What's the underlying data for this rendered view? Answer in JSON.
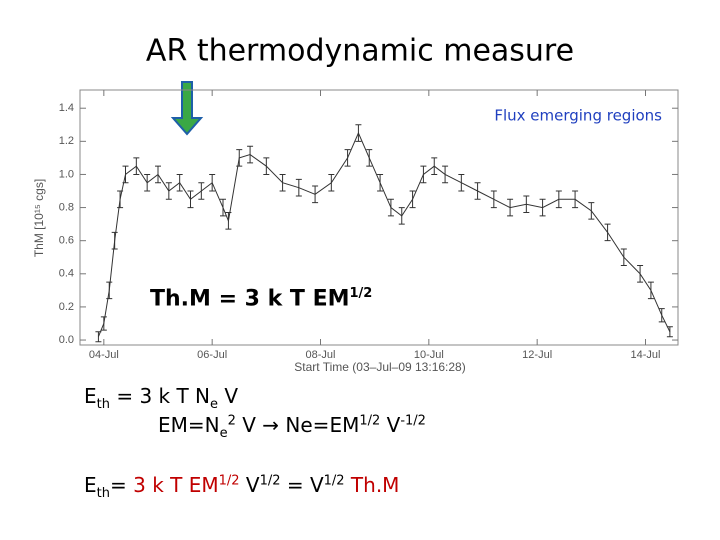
{
  "slide": {
    "title": "AR thermodynamic measure",
    "equations": [
      [
        {
          "t": "Th.M = 3 k T EM"
        },
        {
          "t": "1/2",
          "pos": "sup"
        }
      ],
      [
        {
          "t": "E"
        },
        {
          "t": "th",
          "pos": "sub"
        },
        {
          "t": " = 3 k T N"
        },
        {
          "t": "e",
          "pos": "sub"
        },
        {
          "t": " V"
        }
      ],
      [
        {
          "t": "EM=N"
        },
        {
          "t": "e",
          "pos": "sub"
        },
        {
          "t": "2",
          "pos": "sup"
        },
        {
          "t": " V → Ne=EM"
        },
        {
          "t": "1/2",
          "pos": "sup"
        },
        {
          "t": " V"
        },
        {
          "t": "-1/2",
          "pos": "sup"
        }
      ],
      [
        {
          "t": "E"
        },
        {
          "t": "th",
          "pos": "sub"
        },
        {
          "t": "= "
        },
        {
          "t": "3 k T EM",
          "color": "#c00000"
        },
        {
          "t": "1/2",
          "pos": "sup",
          "color": "#c00000"
        },
        {
          "t": " V"
        },
        {
          "t": "1/2",
          "pos": "sup"
        },
        {
          "t": " = V"
        },
        {
          "t": "1/2",
          "pos": "sup"
        },
        {
          "t": " Th.M",
          "color": "#c00000"
        }
      ]
    ]
  },
  "chart_data": {
    "type": "line",
    "annotation": "Flux emerging regions",
    "xlabel": "Start Time (03–Jul–09 13:16:28)",
    "ylabel": "ThM [10¹⁵ cgs]",
    "x": [
      -0.1,
      0.0,
      0.1,
      0.2,
      0.3,
      0.4,
      0.6,
      0.8,
      1.0,
      1.2,
      1.4,
      1.6,
      1.8,
      2.0,
      2.2,
      2.3,
      2.5,
      2.7,
      3.0,
      3.3,
      3.6,
      3.9,
      4.2,
      4.5,
      4.7,
      4.9,
      5.1,
      5.3,
      5.5,
      5.7,
      5.9,
      6.1,
      6.3,
      6.6,
      6.9,
      7.2,
      7.5,
      7.8,
      8.1,
      8.4,
      8.7,
      9.0,
      9.3,
      9.6,
      9.9,
      10.1,
      10.3,
      10.45
    ],
    "series": [
      {
        "color": "#333333",
        "values": [
          0.02,
          0.1,
          0.3,
          0.6,
          0.85,
          1.0,
          1.05,
          0.95,
          1.0,
          0.9,
          0.95,
          0.85,
          0.9,
          0.95,
          0.8,
          0.72,
          1.1,
          1.12,
          1.05,
          0.95,
          0.92,
          0.88,
          0.95,
          1.1,
          1.25,
          1.1,
          0.95,
          0.8,
          0.75,
          0.85,
          1.0,
          1.05,
          1.0,
          0.95,
          0.9,
          0.85,
          0.8,
          0.82,
          0.8,
          0.85,
          0.85,
          0.78,
          0.65,
          0.5,
          0.4,
          0.3,
          0.15,
          0.05
        ],
        "errors": [
          0.03,
          0.04,
          0.05,
          0.05,
          0.05,
          0.05,
          0.05,
          0.05,
          0.05,
          0.05,
          0.05,
          0.05,
          0.05,
          0.05,
          0.05,
          0.05,
          0.05,
          0.05,
          0.05,
          0.05,
          0.05,
          0.05,
          0.05,
          0.05,
          0.05,
          0.05,
          0.05,
          0.05,
          0.05,
          0.05,
          0.05,
          0.05,
          0.05,
          0.05,
          0.05,
          0.05,
          0.05,
          0.05,
          0.05,
          0.05,
          0.05,
          0.05,
          0.05,
          0.05,
          0.05,
          0.05,
          0.04,
          0.03
        ]
      }
    ],
    "xlim": [
      -0.44,
      10.6
    ],
    "ylim": [
      -0.03,
      1.51
    ],
    "xticks": [
      {
        "value": 0,
        "label": "04-Jul"
      },
      {
        "value": 2,
        "label": "06-Jul"
      },
      {
        "value": 4,
        "label": "08-Jul"
      },
      {
        "value": 6,
        "label": "10-Jul"
      },
      {
        "value": 8,
        "label": "12-Jul"
      },
      {
        "value": 10,
        "label": "14-Jul"
      }
    ],
    "yticks": [
      {
        "value": 0,
        "label": "0.0"
      },
      0.2,
      0.4,
      0.6,
      0.8,
      {
        "value": 1,
        "label": "1.0"
      },
      1.2,
      1.4
    ]
  }
}
